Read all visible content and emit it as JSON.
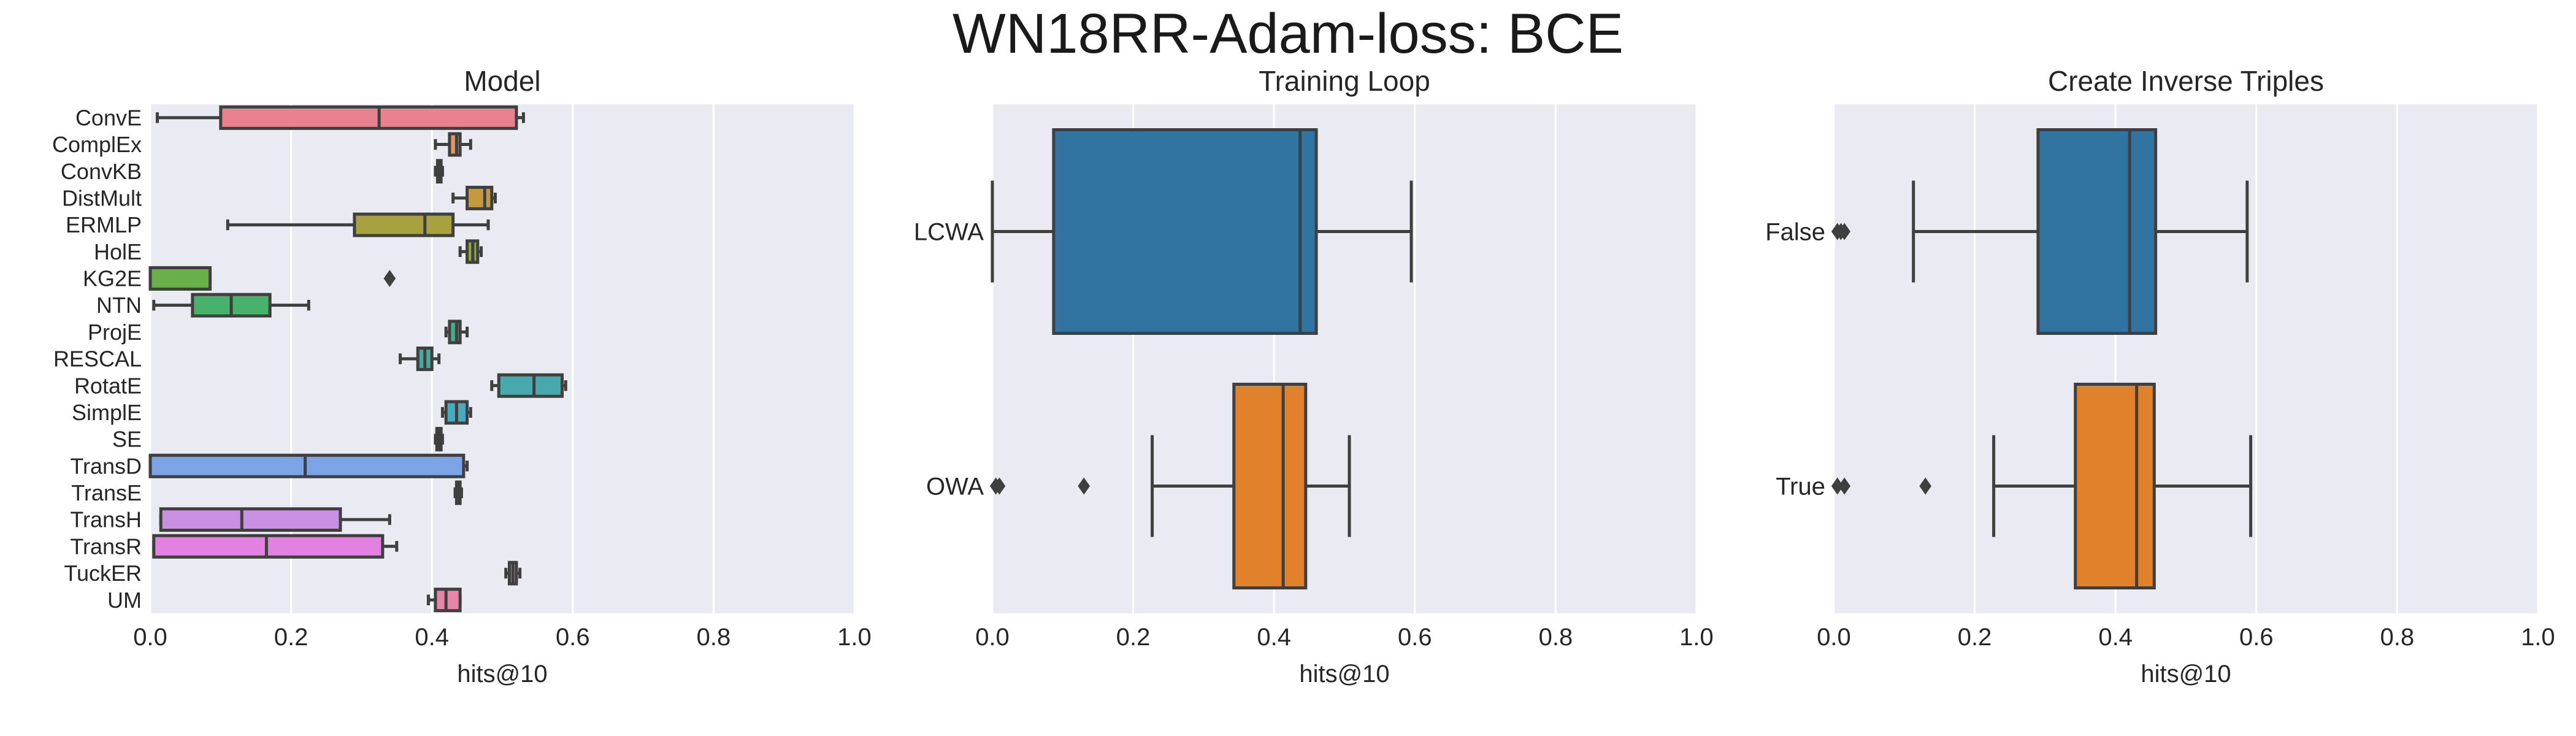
{
  "figure_title": "WN18RR-Adam-loss: BCE",
  "chart_data": [
    {
      "type": "box",
      "orientation": "horizontal",
      "title": "Model",
      "xlabel": "hits@10",
      "ylabel": "",
      "xlim": [
        0,
        1
      ],
      "xticks": [
        "0.0",
        "0.2",
        "0.4",
        "0.6",
        "0.8",
        "1.0"
      ],
      "grid": true,
      "categories": [
        "ConvE",
        "ComplEx",
        "ConvKB",
        "DistMult",
        "ERMLP",
        "HolE",
        "KG2E",
        "NTN",
        "ProjE",
        "RESCAL",
        "RotatE",
        "SimplE",
        "SE",
        "TransD",
        "TransE",
        "TransH",
        "TransR",
        "TuckER",
        "UM"
      ],
      "boxes": [
        {
          "label": "ConvE",
          "color": "#e8828e",
          "whislo": 0.01,
          "q1": 0.1,
          "median": 0.325,
          "q3": 0.52,
          "whishi": 0.53,
          "fliers": []
        },
        {
          "label": "ComplEx",
          "color": "#e39860",
          "whislo": 0.405,
          "q1": 0.425,
          "median": 0.435,
          "q3": 0.44,
          "whishi": 0.455,
          "fliers": []
        },
        {
          "label": "ConvKB",
          "color": "#c89a41",
          "whislo": 0.405,
          "q1": 0.408,
          "median": 0.41,
          "q3": 0.413,
          "whishi": 0.415,
          "fliers": []
        },
        {
          "label": "DistMult",
          "color": "#c49a3f",
          "whislo": 0.43,
          "q1": 0.45,
          "median": 0.475,
          "q3": 0.485,
          "whishi": 0.49,
          "fliers": []
        },
        {
          "label": "ERMLP",
          "color": "#a7a23f",
          "whislo": 0.11,
          "q1": 0.29,
          "median": 0.39,
          "q3": 0.43,
          "whishi": 0.48,
          "fliers": []
        },
        {
          "label": "HolE",
          "color": "#8fa93f",
          "whislo": 0.44,
          "q1": 0.45,
          "median": 0.458,
          "q3": 0.465,
          "whishi": 0.47,
          "fliers": []
        },
        {
          "label": "KG2E",
          "color": "#6ab04a",
          "whislo": 0.0,
          "q1": 0.0,
          "median": 0.0,
          "q3": 0.085,
          "whishi": 0.085,
          "fliers": [
            0.34
          ]
        },
        {
          "label": "NTN",
          "color": "#47b36a",
          "whislo": 0.005,
          "q1": 0.06,
          "median": 0.115,
          "q3": 0.17,
          "whishi": 0.225,
          "fliers": []
        },
        {
          "label": "ProjE",
          "color": "#45ad8f",
          "whislo": 0.42,
          "q1": 0.425,
          "median": 0.435,
          "q3": 0.44,
          "whishi": 0.45,
          "fliers": []
        },
        {
          "label": "RESCAL",
          "color": "#46a9a0",
          "whislo": 0.355,
          "q1": 0.38,
          "median": 0.39,
          "q3": 0.4,
          "whishi": 0.41,
          "fliers": []
        },
        {
          "label": "RotatE",
          "color": "#47a8ad",
          "whislo": 0.485,
          "q1": 0.495,
          "median": 0.545,
          "q3": 0.585,
          "whishi": 0.59,
          "fliers": []
        },
        {
          "label": "SimplE",
          "color": "#49a9bf",
          "whislo": 0.415,
          "q1": 0.42,
          "median": 0.435,
          "q3": 0.45,
          "whishi": 0.455,
          "fliers": []
        },
        {
          "label": "SE",
          "color": "#4ba8d1",
          "whislo": 0.405,
          "q1": 0.407,
          "median": 0.41,
          "q3": 0.413,
          "whishi": 0.415,
          "fliers": []
        },
        {
          "label": "TransD",
          "color": "#7ca3e6",
          "whislo": 0.0,
          "q1": 0.0,
          "median": 0.22,
          "q3": 0.445,
          "whishi": 0.45,
          "fliers": []
        },
        {
          "label": "TransE",
          "color": "#a596e8",
          "whislo": 0.433,
          "q1": 0.435,
          "median": 0.437,
          "q3": 0.44,
          "whishi": 0.442,
          "fliers": []
        },
        {
          "label": "TransH",
          "color": "#c88fe3",
          "whislo": 0.015,
          "q1": 0.015,
          "median": 0.13,
          "q3": 0.27,
          "whishi": 0.34,
          "fliers": []
        },
        {
          "label": "TransR",
          "color": "#e281e0",
          "whislo": 0.005,
          "q1": 0.005,
          "median": 0.165,
          "q3": 0.33,
          "whishi": 0.35,
          "fliers": []
        },
        {
          "label": "TuckER",
          "color": "#e384c6",
          "whislo": 0.505,
          "q1": 0.51,
          "median": 0.515,
          "q3": 0.52,
          "whishi": 0.525,
          "fliers": []
        },
        {
          "label": "UM",
          "color": "#e786a8",
          "whislo": 0.395,
          "q1": 0.405,
          "median": 0.42,
          "q3": 0.44,
          "whishi": 0.44,
          "fliers": []
        }
      ]
    },
    {
      "type": "box",
      "orientation": "horizontal",
      "title": "Training Loop",
      "xlabel": "hits@10",
      "ylabel": "",
      "xlim": [
        0,
        1
      ],
      "xticks": [
        "0.0",
        "0.2",
        "0.4",
        "0.6",
        "0.8",
        "1.0"
      ],
      "grid": true,
      "categories": [
        "LCWA",
        "OWA"
      ],
      "boxes": [
        {
          "label": "LCWA",
          "color": "#3274a1",
          "whislo": 0.0,
          "q1": 0.087,
          "median": 0.437,
          "q3": 0.46,
          "whishi": 0.595,
          "fliers": []
        },
        {
          "label": "OWA",
          "color": "#e1812c",
          "whislo": 0.227,
          "q1": 0.343,
          "median": 0.413,
          "q3": 0.445,
          "whishi": 0.507,
          "fliers": [
            0.005,
            0.01,
            0.13
          ]
        }
      ]
    },
    {
      "type": "box",
      "orientation": "horizontal",
      "title": "Create Inverse Triples",
      "xlabel": "hits@10",
      "ylabel": "",
      "xlim": [
        0,
        1
      ],
      "xticks": [
        "0.0",
        "0.2",
        "0.4",
        "0.6",
        "0.8",
        "1.0"
      ],
      "grid": true,
      "categories": [
        "False",
        "True"
      ],
      "boxes": [
        {
          "label": "False",
          "color": "#3274a1",
          "whislo": 0.113,
          "q1": 0.29,
          "median": 0.42,
          "q3": 0.457,
          "whishi": 0.587,
          "fliers": [
            0.005,
            0.01,
            0.015
          ]
        },
        {
          "label": "True",
          "color": "#e1812c",
          "whislo": 0.227,
          "q1": 0.343,
          "median": 0.43,
          "q3": 0.455,
          "whishi": 0.592,
          "fliers": [
            0.005,
            0.015,
            0.13
          ]
        }
      ]
    }
  ]
}
